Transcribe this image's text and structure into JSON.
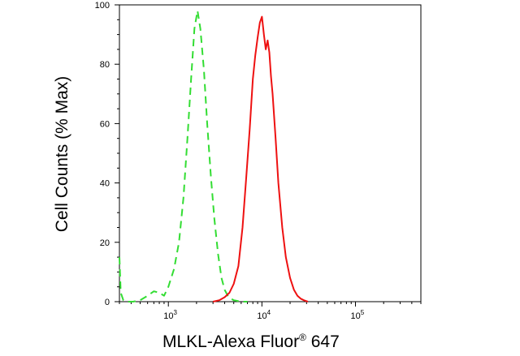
{
  "chart_data": {
    "type": "line",
    "title": "",
    "xlabel": "MLKL-Alexa Fluor",
    "xlabel_superscript": "®",
    "xlabel_suffix": " 647",
    "ylabel": "Cell Counts (% Max)",
    "xscale": "log",
    "xlim": [
      300,
      500000
    ],
    "ylim": [
      0,
      100
    ],
    "yticks": [
      0,
      20,
      40,
      60,
      80,
      100
    ],
    "ytick_labels": [
      "0",
      "20",
      "40",
      "60",
      "80",
      "100"
    ],
    "xticks": [
      1000,
      10000,
      100000
    ],
    "xtick_labels": [
      {
        "base": "10",
        "exp": "3"
      },
      {
        "base": "10",
        "exp": "4"
      },
      {
        "base": "10",
        "exp": "5"
      }
    ],
    "grid": false,
    "legend": "none",
    "series": [
      {
        "style": "dashed",
        "color": "#33dd33",
        "x": [
          300,
          310,
          330,
          370,
          420,
          500,
          600,
          700,
          800,
          900,
          1000,
          1150,
          1300,
          1450,
          1600,
          1750,
          1900,
          2050,
          2200,
          2400,
          2600,
          2850,
          3100,
          3400,
          3700,
          4000,
          4400,
          5000,
          6000,
          7000
        ],
        "y": [
          15,
          3,
          0.5,
          0,
          0,
          0.5,
          2,
          3.5,
          3,
          2,
          5,
          11,
          20,
          35,
          55,
          75,
          92,
          98,
          92,
          78,
          60,
          42,
          28,
          16,
          8,
          4,
          1.5,
          0.5,
          0,
          0
        ]
      },
      {
        "style": "solid",
        "color": "#ee1111",
        "x": [
          3000,
          3500,
          4000,
          4500,
          5000,
          5600,
          6200,
          6800,
          7400,
          8000,
          8500,
          9000,
          9500,
          10000,
          10500,
          11000,
          11500,
          12000,
          12500,
          13000,
          14000,
          15000,
          16500,
          18000,
          20000,
          22000,
          24000,
          26000,
          28000,
          31000
        ],
        "y": [
          0,
          0.5,
          1.5,
          3,
          6,
          12,
          25,
          42,
          58,
          75,
          83,
          89,
          94,
          96,
          90,
          85,
          88,
          84,
          76,
          70,
          55,
          40,
          25,
          15,
          8,
          4,
          2,
          1,
          0.5,
          0
        ]
      }
    ]
  }
}
